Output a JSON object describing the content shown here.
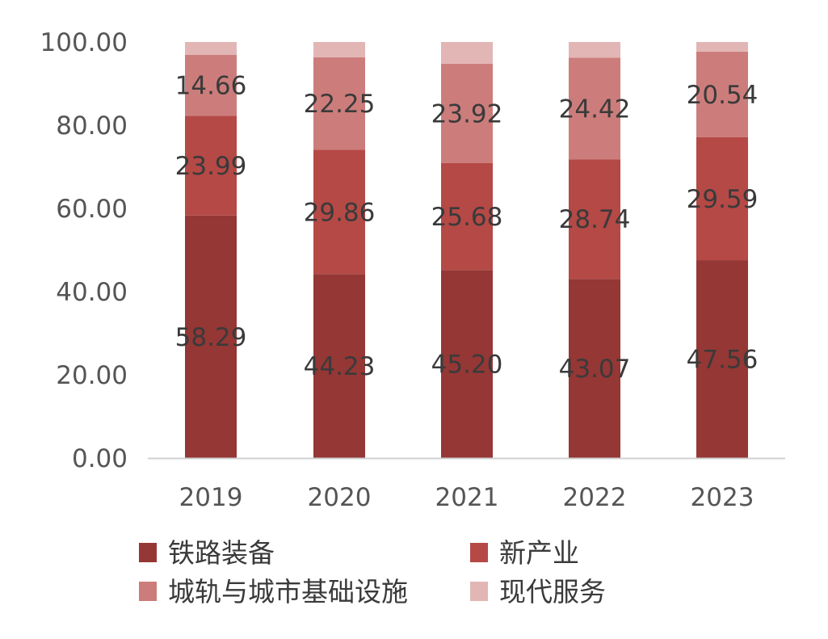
{
  "chart_data": {
    "type": "bar",
    "stacked": true,
    "categories": [
      "2019",
      "2020",
      "2021",
      "2022",
      "2023"
    ],
    "series": [
      {
        "name": "铁路装备",
        "color": "#953735",
        "values": [
          58.29,
          44.23,
          45.2,
          43.07,
          47.56
        ],
        "labels": [
          "58.29",
          "44.23",
          "45.20",
          "43.07",
          "47.56"
        ]
      },
      {
        "name": "新产业",
        "color": "#b54946",
        "values": [
          23.99,
          29.86,
          25.68,
          28.74,
          29.59
        ],
        "labels": [
          "23.99",
          "29.86",
          "25.68",
          "28.74",
          "29.59"
        ]
      },
      {
        "name": "城轨与城市基础设施",
        "color": "#cc7d7b",
        "values": [
          14.66,
          22.25,
          23.92,
          24.42,
          20.54
        ],
        "labels": [
          "14.66",
          "22.25",
          "23.92",
          "24.42",
          "20.54"
        ]
      },
      {
        "name": "现代服务",
        "color": "#e2b6b5",
        "values": [
          3.06,
          3.66,
          5.2,
          3.77,
          2.31
        ],
        "labels": [
          "",
          "",
          "",
          "",
          ""
        ]
      }
    ],
    "y_ticks": [
      "0.00",
      "20.00",
      "40.00",
      "60.00",
      "80.00",
      "100.00"
    ],
    "ylim": [
      0,
      100
    ],
    "grid": false,
    "legend_position": "bottom",
    "axis_color": "#d0d0d0"
  }
}
